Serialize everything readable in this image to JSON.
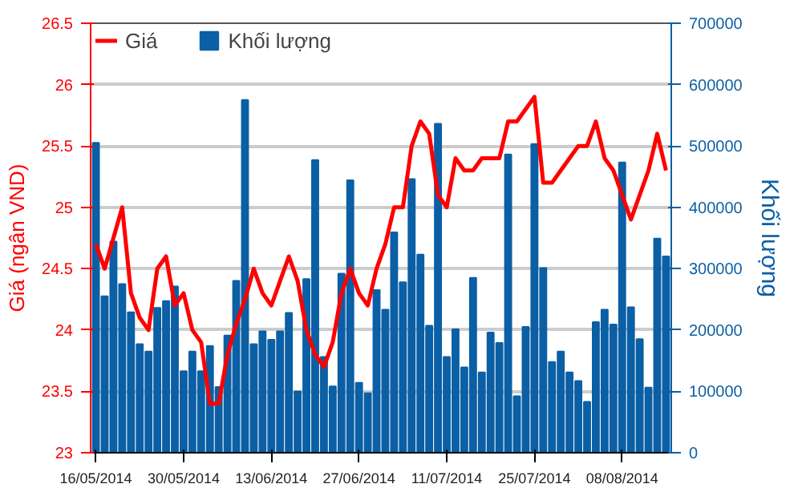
{
  "chart_data": {
    "type": "bar",
    "ylabel": "Giá (ngân VND)",
    "y2label": "Khối lượng",
    "categories": [
      "16/05/2014",
      null,
      null,
      null,
      null,
      null,
      null,
      null,
      null,
      null,
      "30/05/2014",
      null,
      null,
      null,
      null,
      null,
      null,
      null,
      null,
      null,
      "13/06/2014",
      null,
      null,
      null,
      null,
      null,
      null,
      null,
      null,
      null,
      "27/06/2014",
      null,
      null,
      null,
      null,
      null,
      null,
      null,
      null,
      null,
      "11/07/2014",
      null,
      null,
      null,
      null,
      null,
      null,
      null,
      null,
      null,
      "25/07/2014",
      null,
      null,
      null,
      null,
      null,
      null,
      null,
      null,
      null,
      "08/08/2014",
      null,
      null,
      null,
      null,
      null
    ],
    "series": [
      {
        "name": "Khối lượng",
        "axis": "y2",
        "color": "#0b5fa5",
        "values": [
          505000,
          255000,
          344000,
          275000,
          229000,
          177000,
          165000,
          236000,
          247000,
          271000,
          133000,
          165000,
          133000,
          174000,
          107000,
          191000,
          280000,
          575000,
          177000,
          198000,
          184000,
          198000,
          228000,
          100000,
          283000,
          477000,
          156000,
          108000,
          292000,
          444000,
          114000,
          97000,
          265000,
          233000,
          359000,
          278000,
          446000,
          323000,
          207000,
          536000,
          156000,
          201000,
          139000,
          285000,
          131000,
          196000,
          179000,
          486000,
          92000,
          205000,
          503000,
          301000,
          148000,
          165000,
          131000,
          117000,
          83000,
          213000,
          233000,
          209000,
          473000,
          237000,
          185000,
          106000,
          349000,
          320000
        ]
      },
      {
        "name": "Giá",
        "type": "line",
        "color": "#ff0000",
        "values": [
          24.7,
          24.5,
          24.75,
          25.0,
          24.3,
          24.1,
          24.0,
          24.5,
          24.6,
          24.2,
          24.3,
          24.0,
          23.9,
          23.4,
          23.4,
          23.8,
          24.05,
          24.25,
          24.5,
          24.3,
          24.2,
          24.4,
          24.6,
          24.4,
          24.0,
          23.8,
          23.7,
          23.9,
          24.3,
          24.5,
          24.3,
          24.2,
          24.5,
          24.7,
          25.0,
          25.0,
          25.5,
          25.7,
          25.6,
          25.1,
          25.0,
          25.4,
          25.3,
          25.3,
          25.4,
          25.4,
          25.4,
          25.7,
          25.7,
          25.8,
          25.9,
          25.2,
          25.2,
          25.3,
          25.4,
          25.5,
          25.5,
          25.7,
          25.4,
          25.3,
          25.1,
          24.9,
          25.1,
          25.3,
          25.6,
          25.3
        ]
      }
    ],
    "ylim": [
      23,
      26.5
    ],
    "yticks": [
      23,
      23.5,
      24,
      24.5,
      25,
      25.5,
      26,
      26.5
    ],
    "y2lim": [
      0,
      700000
    ],
    "y2ticks": [
      0,
      100000,
      200000,
      300000,
      400000,
      500000,
      600000,
      700000
    ],
    "grid": "y",
    "legend": "top left"
  }
}
